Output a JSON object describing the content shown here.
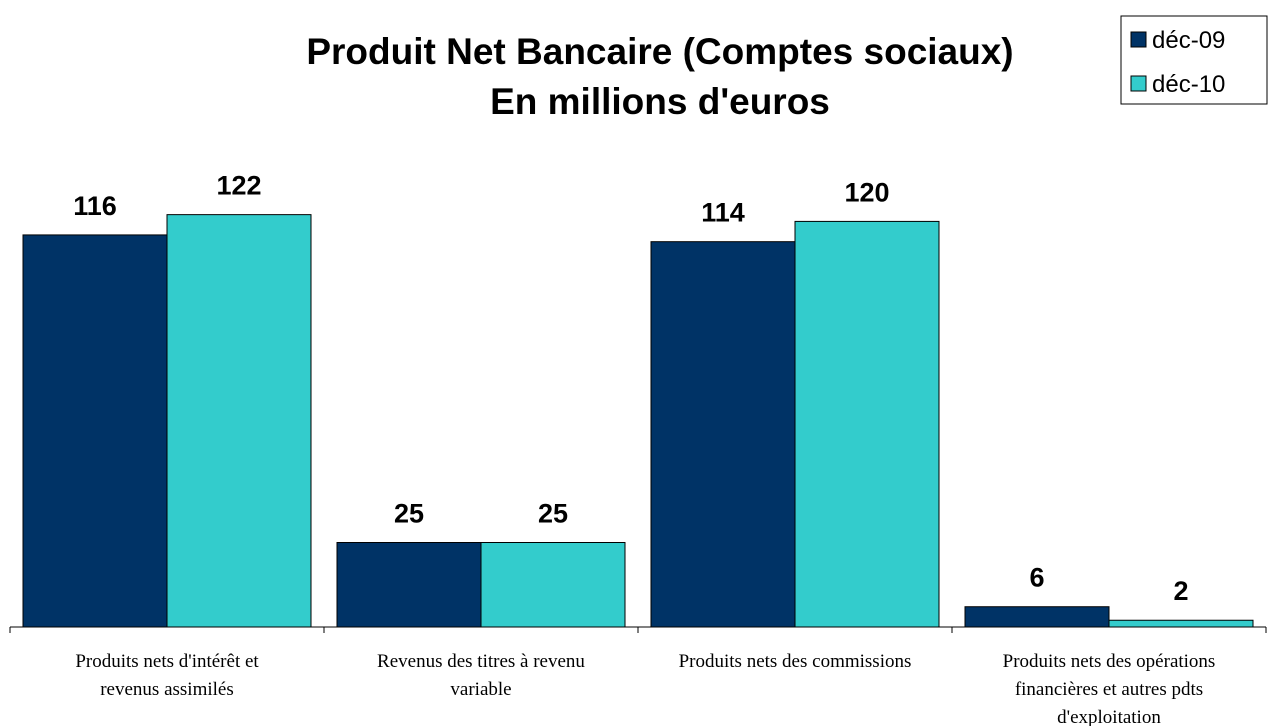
{
  "chart_data": {
    "type": "bar",
    "title": "Produit Net Bancaire (Comptes sociaux)",
    "subtitle": "En millions d'euros",
    "categories": [
      [
        "Produits nets d'intérêt et",
        "revenus assimilés"
      ],
      [
        "Revenus des titres à revenu",
        "variable"
      ],
      [
        "Produits nets des commissions"
      ],
      [
        "Produits nets des opérations",
        "financières et autres pdts",
        "d'exploitation"
      ]
    ],
    "series": [
      {
        "name": "déc-09",
        "color": "#003366",
        "values": [
          116,
          25,
          114,
          6
        ]
      },
      {
        "name": "déc-10",
        "color": "#33CCCC",
        "values": [
          122,
          25,
          120,
          2
        ]
      }
    ],
    "ylim": [
      0,
      150
    ],
    "grid": false,
    "legend": "top-right",
    "xlabel": "",
    "ylabel": ""
  }
}
